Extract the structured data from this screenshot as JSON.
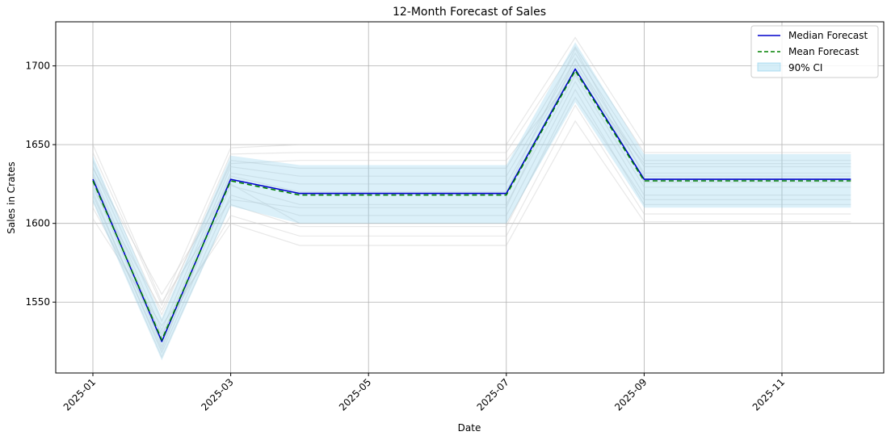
{
  "chart_data": {
    "type": "line",
    "title": "12-Month Forecast of Sales",
    "xlabel": "Date",
    "ylabel": "Sales in Crates",
    "x": [
      "2025-01",
      "2025-02",
      "2025-03",
      "2025-04",
      "2025-05",
      "2025-06",
      "2025-07",
      "2025-08",
      "2025-09",
      "2025-10",
      "2025-11",
      "2025-12"
    ],
    "x_ticks": [
      "2025-01",
      "2025-03",
      "2025-05",
      "2025-07",
      "2025-09",
      "2025-11"
    ],
    "yticks": [
      1550,
      1600,
      1650,
      1700
    ],
    "ylim": [
      1505,
      1728
    ],
    "grid": true,
    "legend_position": "top-right",
    "series": [
      {
        "name": "Median Forecast",
        "color": "#0000cc",
        "style": "solid",
        "values": [
          1628,
          1525,
          1628,
          1619,
          1619,
          1619,
          1619,
          1698,
          1628,
          1628,
          1628,
          1628
        ]
      },
      {
        "name": "Mean Forecast",
        "color": "#008000",
        "style": "dashed",
        "values": [
          1627,
          1526,
          1627,
          1618,
          1618,
          1618,
          1618,
          1697,
          1627,
          1627,
          1627,
          1627
        ]
      }
    ],
    "confidence_interval": {
      "name": "90% CI",
      "color": "#87ceeb",
      "lower": [
        1613,
        1513,
        1611,
        1600,
        1600,
        1600,
        1600,
        1677,
        1610,
        1610,
        1610,
        1610
      ],
      "upper": [
        1643,
        1540,
        1643,
        1637,
        1637,
        1637,
        1637,
        1715,
        1644,
        1644,
        1644,
        1644
      ]
    },
    "sample_paths_color": "#cccccc",
    "sample_paths": [
      [
        1645,
        1548,
        1648,
        1650,
        1650,
        1650,
        1650,
        1718,
        1650,
        1650,
        1650,
        1650
      ],
      [
        1640,
        1542,
        1644,
        1645,
        1645,
        1645,
        1645,
        1712,
        1645,
        1645,
        1645,
        1645
      ],
      [
        1636,
        1538,
        1640,
        1635,
        1635,
        1635,
        1635,
        1708,
        1640,
        1640,
        1640,
        1640
      ],
      [
        1632,
        1532,
        1636,
        1630,
        1630,
        1630,
        1630,
        1704,
        1636,
        1636,
        1636,
        1636
      ],
      [
        1630,
        1528,
        1632,
        1625,
        1625,
        1625,
        1625,
        1701,
        1632,
        1632,
        1632,
        1632
      ],
      [
        1625,
        1522,
        1624,
        1612,
        1612,
        1612,
        1612,
        1694,
        1623,
        1623,
        1623,
        1623
      ],
      [
        1620,
        1518,
        1618,
        1605,
        1605,
        1605,
        1605,
        1690,
        1618,
        1618,
        1618,
        1618
      ],
      [
        1615,
        1515,
        1612,
        1598,
        1598,
        1598,
        1598,
        1685,
        1612,
        1612,
        1612,
        1612
      ],
      [
        1610,
        1530,
        1605,
        1592,
        1592,
        1592,
        1592,
        1675,
        1606,
        1606,
        1606,
        1606
      ],
      [
        1603,
        1535,
        1600,
        1586,
        1586,
        1586,
        1586,
        1665,
        1601,
        1601,
        1601,
        1601
      ],
      [
        1635,
        1555,
        1625,
        1600,
        1600,
        1600,
        1600,
        1680,
        1615,
        1615,
        1615,
        1615
      ],
      [
        1622,
        1545,
        1638,
        1640,
        1640,
        1640,
        1640,
        1695,
        1638,
        1638,
        1638,
        1638
      ],
      [
        1650,
        1550,
        1615,
        1610,
        1610,
        1610,
        1610,
        1705,
        1626,
        1626,
        1626,
        1626
      ],
      [
        1618,
        1520,
        1630,
        1620,
        1620,
        1620,
        1620,
        1711,
        1630,
        1630,
        1630,
        1630
      ]
    ]
  }
}
